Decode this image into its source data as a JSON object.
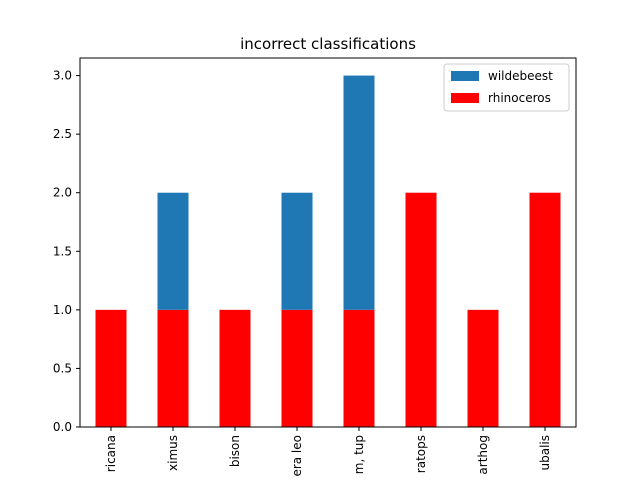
{
  "chart_data": {
    "type": "bar",
    "stacked": true,
    "title": "incorrect classifications",
    "xlabel": "",
    "ylabel": "",
    "categories": [
      "ricana",
      "ximus",
      "bison",
      "era leo",
      "m, tup",
      "ratops",
      "arthog",
      "ubalis"
    ],
    "series": [
      {
        "name": "rhinoceros",
        "color": "#ff0000",
        "values": [
          1,
          1,
          1,
          1,
          1,
          2,
          1,
          2
        ]
      },
      {
        "name": "wildebeest",
        "color": "#1f77b4",
        "values": [
          0,
          1,
          0,
          1,
          2,
          0,
          0,
          0
        ]
      }
    ],
    "ylim": [
      0,
      3.15
    ],
    "yticks": [
      0.0,
      0.5,
      1.0,
      1.5,
      2.0,
      2.5,
      3.0
    ],
    "ytick_labels": [
      "0.0",
      "0.5",
      "1.0",
      "1.5",
      "2.0",
      "2.5",
      "3.0"
    ],
    "legend": {
      "placement": "top-right",
      "order": [
        "wildebeest",
        "rhinoceros"
      ]
    },
    "grid": false
  }
}
